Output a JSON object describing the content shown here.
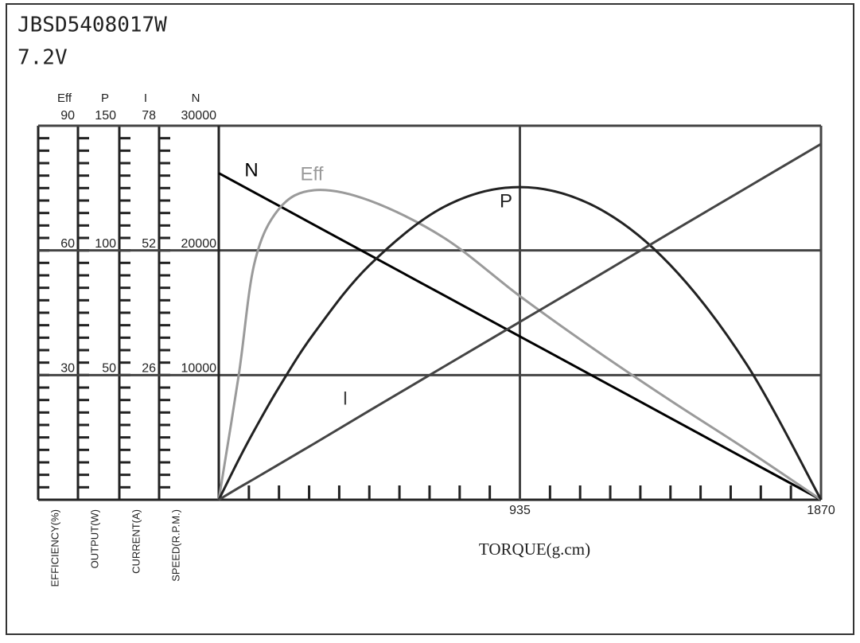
{
  "chart_data": {
    "type": "line",
    "title": "JBSD5408017W",
    "subtitle": "7.2V",
    "x_label": "TORQUE(g.cm)",
    "x": [
      0,
      62,
      111,
      187,
      296,
      468,
      700,
      935,
      1170,
      1400,
      1640,
      1870
    ],
    "xlim": [
      0,
      1870
    ],
    "xticks": [
      935,
      1870
    ],
    "grid": true,
    "axes": [
      {
        "name": "Eff",
        "label": "EFFICIENCY(%)",
        "lim": [
          0,
          90
        ],
        "ticks": [
          30,
          60,
          90
        ]
      },
      {
        "name": "P",
        "label": "OUTPUT(W)",
        "lim": [
          0,
          150
        ],
        "ticks": [
          50,
          100,
          150
        ]
      },
      {
        "name": "I",
        "label": "CURRENT(A)",
        "lim": [
          0,
          78
        ],
        "ticks": [
          26,
          52,
          78
        ]
      },
      {
        "name": "N",
        "label": "SPEED(R.P.M.)",
        "lim": [
          0,
          30000
        ],
        "ticks": [
          10000,
          20000,
          30000
        ]
      }
    ],
    "series": [
      {
        "name": "N",
        "color": "#000000",
        "axis": 3,
        "values": [
          26200,
          25330,
          24640,
          23580,
          22050,
          19640,
          16390,
          13100,
          9810,
          6590,
          3220,
          0
        ]
      },
      {
        "name": "Eff",
        "color": "#9a9a9a",
        "axis": 0,
        "values": [
          0,
          30,
          57,
          70,
          74.5,
          72,
          63,
          49,
          36,
          24,
          12,
          0
        ]
      },
      {
        "name": "P",
        "color": "#222222",
        "axis": 1,
        "values": [
          0,
          16.1,
          28,
          45.1,
          66.8,
          94.1,
          117.5,
          125.4,
          117.5,
          94.4,
          54.1,
          0
        ]
      },
      {
        "name": "I",
        "color": "#444444",
        "axis": 2,
        "values": [
          0,
          2.5,
          4.4,
          7.4,
          11.7,
          18.6,
          27.8,
          37.1,
          46.4,
          55.6,
          65.1,
          74.2
        ]
      }
    ]
  }
}
